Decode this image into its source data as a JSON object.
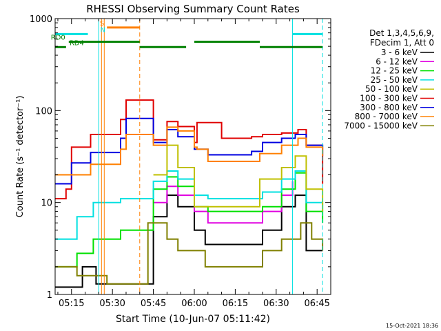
{
  "chart_data": {
    "type": "line",
    "title": "RHESSI Observing Summary Count Rates",
    "xlabel": "Start Time (10-Jun-07 05:11:42)",
    "ylabel": "Count Rate (s⁻¹ detector⁻¹)",
    "yscale": "log",
    "ylim": [
      1,
      1000
    ],
    "xlim": [
      "05:09",
      "06:50"
    ],
    "xticks": [
      "05:15",
      "05:30",
      "05:45",
      "06:00",
      "06:15",
      "06:30",
      "06:45"
    ],
    "yticks": [
      "1",
      "10",
      "100",
      "1000"
    ],
    "legend_header": [
      "Det 1,3,4,5,6,9,",
      "FDecim 1, Att 0"
    ],
    "legend_placement": "right",
    "footer": "15-Oct-2021 18:36",
    "series": [
      {
        "name": "3 - 6 keV",
        "color": "#000000",
        "points": [
          [
            "05:09",
            1.2
          ],
          [
            "05:13",
            1.2
          ],
          [
            "05:19",
            2
          ],
          [
            "05:22",
            2
          ],
          [
            "05:24",
            1.3
          ],
          [
            "05:30",
            1.3
          ],
          [
            "05:33",
            1.3
          ],
          [
            "05:45",
            7
          ],
          [
            "05:50",
            12
          ],
          [
            "05:54",
            9
          ],
          [
            "06:00",
            5
          ],
          [
            "06:04",
            3.5
          ],
          [
            "06:15",
            3.5
          ],
          [
            "06:21",
            3.5
          ],
          [
            "06:25",
            5
          ],
          [
            "06:32",
            9
          ],
          [
            "06:37",
            12
          ],
          [
            "06:41",
            3
          ],
          [
            "06:47",
            3
          ]
        ]
      },
      {
        "name": "6 - 12 keV",
        "color": "#e000e0",
        "points": [
          [
            "05:45",
            10
          ],
          [
            "05:50",
            15
          ],
          [
            "05:54",
            12
          ],
          [
            "06:00",
            8
          ],
          [
            "06:05",
            6
          ],
          [
            "06:15",
            6
          ],
          [
            "06:21",
            6
          ],
          [
            "06:25",
            8
          ],
          [
            "06:32",
            12
          ],
          [
            "06:36",
            17
          ]
        ]
      },
      {
        "name": "12 - 25 keV",
        "color": "#00e000",
        "points": [
          [
            "05:09",
            2
          ],
          [
            "05:13",
            2
          ],
          [
            "05:17",
            2.8
          ],
          [
            "05:21",
            2.8
          ],
          [
            "05:23",
            4
          ],
          [
            "05:28",
            4
          ],
          [
            "05:33",
            5
          ],
          [
            "05:45",
            14
          ],
          [
            "05:50",
            19
          ],
          [
            "05:54",
            15
          ],
          [
            "06:00",
            9
          ],
          [
            "06:05",
            8
          ],
          [
            "06:15",
            8
          ],
          [
            "06:21",
            8
          ],
          [
            "06:25",
            9
          ],
          [
            "06:32",
            14
          ],
          [
            "06:37",
            21
          ],
          [
            "06:41",
            8
          ],
          [
            "06:47",
            6
          ]
        ]
      },
      {
        "name": "25 - 50 keV",
        "color": "#00e0e0",
        "points": [
          [
            "05:09",
            4
          ],
          [
            "05:13",
            4
          ],
          [
            "05:17",
            7
          ],
          [
            "05:21",
            7
          ],
          [
            "05:23",
            10
          ],
          [
            "05:28",
            10
          ],
          [
            "05:33",
            11
          ],
          [
            "05:45",
            17
          ],
          [
            "05:50",
            22
          ],
          [
            "05:54",
            18
          ],
          [
            "06:00",
            12
          ],
          [
            "06:05",
            11
          ],
          [
            "06:15",
            11
          ],
          [
            "06:21",
            11
          ],
          [
            "06:25",
            13
          ],
          [
            "06:32",
            18
          ],
          [
            "06:37",
            22
          ],
          [
            "06:41",
            10
          ],
          [
            "06:47",
            8
          ]
        ]
      },
      {
        "name": "50 - 100 keV",
        "color": "#c0c000",
        "points": [
          [
            "05:45",
            20
          ],
          [
            "05:50",
            42
          ],
          [
            "05:54",
            24
          ],
          [
            "06:00",
            9
          ],
          [
            "06:03",
            9
          ],
          [
            "06:15",
            9
          ],
          [
            "06:21",
            9
          ],
          [
            "06:24",
            18
          ],
          [
            "06:32",
            24
          ],
          [
            "06:37",
            32
          ],
          [
            "06:41",
            14
          ],
          [
            "06:47",
            8
          ]
        ]
      },
      {
        "name": "100 - 300 keV",
        "color": "#e00000",
        "points": [
          [
            "05:09",
            11
          ],
          [
            "05:13",
            14
          ],
          [
            "05:15",
            40
          ],
          [
            "05:20",
            40
          ],
          [
            "05:22",
            55
          ],
          [
            "05:28",
            55
          ],
          [
            "05:33",
            80
          ],
          [
            "05:35",
            130
          ],
          [
            "05:45",
            48
          ],
          [
            "05:50",
            76
          ],
          [
            "05:54",
            67
          ],
          [
            "06:00",
            45
          ],
          [
            "06:01",
            74
          ],
          [
            "06:10",
            50
          ],
          [
            "06:15",
            50
          ],
          [
            "06:21",
            52
          ],
          [
            "06:25",
            55
          ],
          [
            "06:32",
            57
          ],
          [
            "06:38",
            62
          ],
          [
            "06:41",
            42
          ],
          [
            "06:47",
            16
          ]
        ]
      },
      {
        "name": "300 - 800 keV",
        "color": "#0000e0",
        "points": [
          [
            "05:09",
            16
          ],
          [
            "05:13",
            16
          ],
          [
            "05:15",
            27
          ],
          [
            "05:20",
            27
          ],
          [
            "05:22",
            35
          ],
          [
            "05:28",
            35
          ],
          [
            "05:33",
            50
          ],
          [
            "05:35",
            82
          ],
          [
            "05:45",
            45
          ],
          [
            "05:50",
            62
          ],
          [
            "05:54",
            52
          ],
          [
            "06:00",
            38
          ],
          [
            "06:05",
            33
          ],
          [
            "06:15",
            33
          ],
          [
            "06:21",
            36
          ],
          [
            "06:25",
            45
          ],
          [
            "06:32",
            50
          ],
          [
            "06:37",
            55
          ],
          [
            "06:41",
            42
          ],
          [
            "06:47",
            32
          ]
        ]
      },
      {
        "name": "800 - 7000 keV",
        "color": "#ff8000",
        "points": [
          [
            "05:09",
            20
          ],
          [
            "05:13",
            20
          ],
          [
            "05:15",
            20
          ],
          [
            "05:20",
            20
          ],
          [
            "05:22",
            26
          ],
          [
            "05:28",
            26
          ],
          [
            "05:33",
            38
          ],
          [
            "05:35",
            55
          ],
          [
            "05:45",
            42
          ],
          [
            "05:50",
            66
          ],
          [
            "05:54",
            60
          ],
          [
            "06:00",
            40
          ],
          [
            "06:01",
            38
          ],
          [
            "06:05",
            28
          ],
          [
            "06:15",
            28
          ],
          [
            "06:21",
            28
          ],
          [
            "06:24",
            34
          ],
          [
            "06:32",
            42
          ],
          [
            "06:38",
            50
          ],
          [
            "06:41",
            40
          ],
          [
            "06:47",
            32
          ]
        ]
      },
      {
        "name": "7000 - 15000 keV",
        "color": "#808000",
        "points": [
          [
            "05:09",
            2
          ],
          [
            "05:13",
            2
          ],
          [
            "05:17",
            1.6
          ],
          [
            "05:23",
            1.6
          ],
          [
            "05:28",
            1.3
          ],
          [
            "05:33",
            1.3
          ],
          [
            "05:43",
            6
          ],
          [
            "05:47",
            6
          ],
          [
            "05:50",
            4
          ],
          [
            "05:54",
            3
          ],
          [
            "06:00",
            3
          ],
          [
            "06:04",
            2
          ],
          [
            "06:15",
            2
          ],
          [
            "06:21",
            2
          ],
          [
            "06:25",
            3
          ],
          [
            "06:32",
            4
          ],
          [
            "06:36",
            4
          ],
          [
            "06:39",
            6
          ],
          [
            "06:43",
            4
          ],
          [
            "06:47",
            3
          ]
        ]
      }
    ],
    "vertical_lines": [
      {
        "time": "05:25",
        "color": "#00e0e0",
        "style": "solid"
      },
      {
        "time": "05:26",
        "color": "#ff8000",
        "style": "solid"
      },
      {
        "time": "05:27",
        "color": "#ff8000",
        "style": "solid"
      },
      {
        "time": "05:40",
        "color": "#ff8000",
        "style": "dashed"
      },
      {
        "time": "06:36",
        "color": "#00e0e0",
        "style": "solid"
      },
      {
        "time": "06:47",
        "color": "#00e0e0",
        "style": "dashed"
      }
    ],
    "state_bars": [
      {
        "label": "S",
        "color": "#ff8000",
        "value": 800,
        "segments": [
          [
            "05:28",
            "05:40"
          ]
        ]
      },
      {
        "label": "N",
        "color": "#00e0e0",
        "value": 680,
        "segments": [
          [
            "05:09",
            "05:21"
          ],
          [
            "06:36",
            "06:47"
          ]
        ]
      },
      {
        "label": "RD0",
        "color": "#008000",
        "value": 560,
        "segments": [
          [
            "05:14",
            "05:40"
          ],
          [
            "06:00",
            "06:24"
          ]
        ]
      },
      {
        "label": "RD4",
        "color": "#008000",
        "value": 490,
        "segments": [
          [
            "05:09",
            "05:13"
          ],
          [
            "05:40",
            "05:57"
          ],
          [
            "06:24",
            "06:47"
          ]
        ]
      }
    ]
  }
}
